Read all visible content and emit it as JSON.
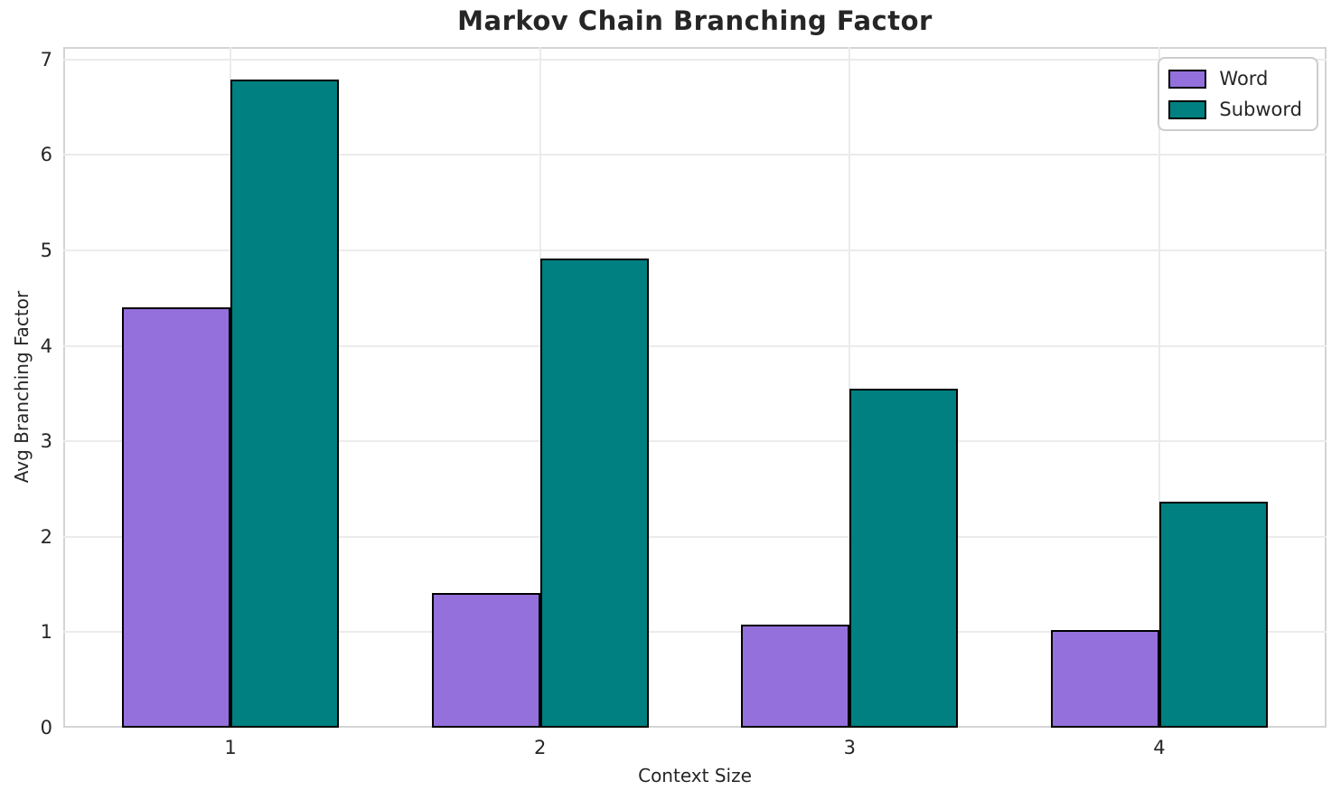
{
  "title": "Markov Chain Branching Factor",
  "chart_data": {
    "type": "bar",
    "title": "Markov Chain Branching Factor",
    "xlabel": "Context Size",
    "ylabel": "Avg Branching Factor",
    "categories": [
      "1",
      "2",
      "3",
      "4"
    ],
    "series": [
      {
        "name": "Word",
        "color": "#9370db",
        "values": [
          4.4,
          1.41,
          1.08,
          1.02
        ]
      },
      {
        "name": "Subword",
        "color": "#008080",
        "values": [
          6.79,
          4.91,
          3.55,
          2.37
        ]
      }
    ],
    "bar_edge_color": "#000000",
    "bar_width_units": 0.35,
    "ylim": [
      0,
      7.13
    ],
    "yticks": [
      0,
      1,
      2,
      3,
      4,
      5,
      6,
      7
    ],
    "xlim": [
      -0.54,
      3.54
    ],
    "grid": true,
    "grid_color": "#ebebeb",
    "spine_color": "#d4d4d4",
    "text_color": "#262626",
    "legend_position": "upper right"
  }
}
